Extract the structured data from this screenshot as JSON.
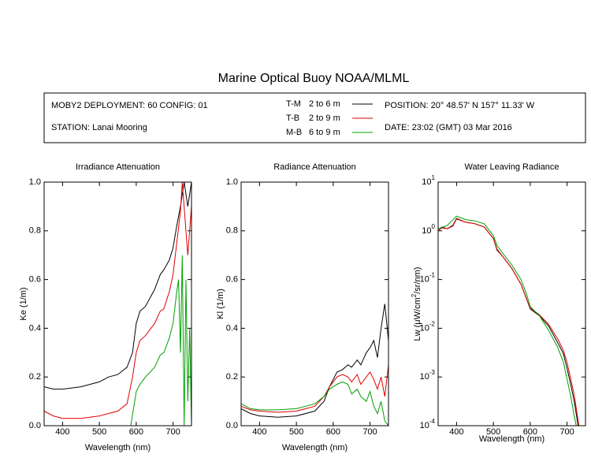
{
  "title": "Marine Optical Buoy NOAA/MLML",
  "info": {
    "deployment": "MOBY2 DEPLOYMENT: 60 CONFIG: 01",
    "station": "STATION: Lanai Mooring",
    "position": "POSITION: 20° 48.57' N   157° 11.33' W",
    "date": "DATE: 23:02 (GMT) 03 Mar 2016"
  },
  "chart_data": [
    {
      "type": "line",
      "title": "Irradiance Attenuation",
      "xlabel": "Wavelength (nm)",
      "ylabel": "Ke  (1/m)",
      "xlim": [
        350,
        750
      ],
      "xticks": [
        400,
        500,
        600,
        700
      ],
      "ylim": [
        0,
        1
      ],
      "yticks": [
        {
          "value": 0,
          "label": "0.0"
        },
        0.2,
        0.4,
        0.6,
        0.8,
        {
          "value": 1,
          "label": "1.0"
        }
      ],
      "series": [
        {
          "name": "T-M",
          "depth": "2 to 6  m",
          "color": "#000000",
          "x": [
            350,
            375,
            400,
            425,
            450,
            475,
            500,
            525,
            550,
            575,
            590,
            600,
            610,
            625,
            650,
            665,
            675,
            690,
            700,
            710,
            720,
            730,
            740,
            750
          ],
          "values": [
            0.16,
            0.15,
            0.15,
            0.155,
            0.16,
            0.17,
            0.18,
            0.2,
            0.21,
            0.24,
            0.3,
            0.42,
            0.47,
            0.49,
            0.56,
            0.62,
            0.64,
            0.68,
            0.73,
            0.82,
            0.9,
            1.0,
            0.9,
            1.0
          ]
        },
        {
          "name": "T-B",
          "depth": "2 to 9  m",
          "color": "#e00000",
          "x": [
            350,
            375,
            400,
            450,
            500,
            525,
            550,
            575,
            590,
            600,
            610,
            625,
            650,
            665,
            675,
            690,
            700,
            710,
            720,
            725,
            740,
            750
          ],
          "values": [
            0.06,
            0.04,
            0.03,
            0.03,
            0.04,
            0.05,
            0.06,
            0.09,
            0.2,
            0.3,
            0.35,
            0.37,
            0.42,
            0.47,
            0.48,
            0.55,
            0.62,
            0.75,
            0.88,
            1.0,
            0.7,
            0.9
          ]
        },
        {
          "name": "M-B",
          "depth": "6 to 9  m",
          "color": "#00a000",
          "x": [
            585,
            600,
            610,
            625,
            650,
            665,
            675,
            690,
            700,
            710,
            715,
            720,
            725,
            730,
            735,
            740,
            745,
            750
          ],
          "values": [
            0,
            0.14,
            0.17,
            0.2,
            0.24,
            0.29,
            0.3,
            0.36,
            0.42,
            0.55,
            0.6,
            0.3,
            0.7,
            0,
            0.6,
            0.1,
            0.4,
            0
          ]
        }
      ]
    },
    {
      "type": "line",
      "title": "Radiance Attenuation",
      "xlabel": "Wavelength (nm)",
      "ylabel": "Kl  (1/m)",
      "xlim": [
        350,
        750
      ],
      "xticks": [
        400,
        500,
        600,
        700
      ],
      "ylim": [
        0,
        1
      ],
      "yticks": [
        {
          "value": 0,
          "label": "0.0"
        },
        0.2,
        0.4,
        0.6,
        0.8,
        {
          "value": 1,
          "label": "1.0"
        }
      ],
      "series": [
        {
          "color": "#000000",
          "x": [
            350,
            375,
            400,
            450,
            500,
            550,
            575,
            590,
            600,
            610,
            625,
            640,
            650,
            665,
            675,
            690,
            700,
            710,
            720,
            730,
            740,
            750
          ],
          "values": [
            0.07,
            0.05,
            0.04,
            0.035,
            0.04,
            0.06,
            0.1,
            0.16,
            0.19,
            0.22,
            0.23,
            0.25,
            0.24,
            0.27,
            0.25,
            0.3,
            0.32,
            0.35,
            0.28,
            0.4,
            0.5,
            0.35
          ]
        },
        {
          "color": "#e00000",
          "x": [
            350,
            375,
            400,
            450,
            500,
            550,
            575,
            590,
            600,
            610,
            625,
            640,
            650,
            665,
            675,
            690,
            700,
            710,
            720,
            730,
            740,
            750
          ],
          "values": [
            0.08,
            0.065,
            0.06,
            0.055,
            0.06,
            0.08,
            0.12,
            0.16,
            0.18,
            0.2,
            0.21,
            0.2,
            0.18,
            0.21,
            0.17,
            0.2,
            0.22,
            0.19,
            0.15,
            0.2,
            0.12,
            0.25
          ]
        },
        {
          "color": "#00a000",
          "x": [
            350,
            375,
            400,
            450,
            500,
            550,
            575,
            590,
            600,
            610,
            625,
            640,
            650,
            665,
            675,
            690,
            700,
            710,
            720,
            730,
            740,
            750
          ],
          "values": [
            0.09,
            0.07,
            0.065,
            0.065,
            0.07,
            0.09,
            0.12,
            0.15,
            0.16,
            0.17,
            0.18,
            0.17,
            0.13,
            0.15,
            0.12,
            0.1,
            0.14,
            0.08,
            0.05,
            0.1,
            0.02,
            0
          ]
        }
      ]
    },
    {
      "type": "line",
      "title": "Water Leaving Radiance",
      "xlabel": "Wavelength (nm)",
      "ylabel": "Lw  (μW/cm",
      "ylabel_sup": "2",
      "ylabel_end": "/sr/nm)",
      "log_y": true,
      "xlim": [
        350,
        750
      ],
      "xticks": [
        400,
        500,
        600,
        700
      ],
      "ylim": [
        0.0001,
        10
      ],
      "yticks": [
        {
          "value": 0.0001,
          "label": "10",
          "exponent": "-4"
        },
        {
          "value": 0.001,
          "label": "10",
          "exponent": "-3"
        },
        {
          "value": 0.01,
          "label": "10",
          "exponent": "-2"
        },
        {
          "value": 0.1,
          "label": "10",
          "exponent": "-1"
        },
        {
          "value": 1,
          "label": "10",
          "exponent": "0"
        },
        {
          "value": 10,
          "label": "10",
          "exponent": "1"
        }
      ],
      "series": [
        {
          "color": "#000000",
          "x": [
            350,
            360,
            375,
            390,
            400,
            425,
            450,
            475,
            500,
            510,
            525,
            550,
            575,
            590,
            600,
            625,
            650,
            675,
            690,
            700,
            710,
            720,
            730
          ],
          "values": [
            1.0,
            1.2,
            1.1,
            1.3,
            1.8,
            1.5,
            1.4,
            1.2,
            0.7,
            0.4,
            0.3,
            0.17,
            0.08,
            0.04,
            0.025,
            0.018,
            0.011,
            0.005,
            0.003,
            0.0015,
            0.0007,
            0.0003,
            0.0001
          ]
        },
        {
          "color": "#e00000",
          "x": [
            350,
            360,
            375,
            390,
            400,
            425,
            450,
            475,
            500,
            510,
            525,
            550,
            575,
            590,
            600,
            625,
            650,
            675,
            690,
            700,
            710,
            720,
            732
          ],
          "values": [
            1.0,
            1.15,
            1.1,
            1.25,
            1.75,
            1.5,
            1.4,
            1.2,
            0.7,
            0.42,
            0.3,
            0.17,
            0.08,
            0.04,
            0.026,
            0.019,
            0.012,
            0.006,
            0.0035,
            0.002,
            0.0009,
            0.0004,
            0.0001
          ]
        },
        {
          "color": "#00a000",
          "x": [
            350,
            375,
            400,
            425,
            450,
            475,
            500,
            510,
            525,
            550,
            575,
            590,
            600,
            625,
            650,
            675,
            690,
            700,
            710,
            720,
            725
          ],
          "values": [
            1.1,
            1.3,
            2.0,
            1.7,
            1.6,
            1.4,
            0.8,
            0.5,
            0.35,
            0.2,
            0.1,
            0.05,
            0.028,
            0.018,
            0.009,
            0.004,
            0.002,
            0.0009,
            0.0004,
            0.00015,
            0.0001
          ]
        }
      ]
    }
  ]
}
